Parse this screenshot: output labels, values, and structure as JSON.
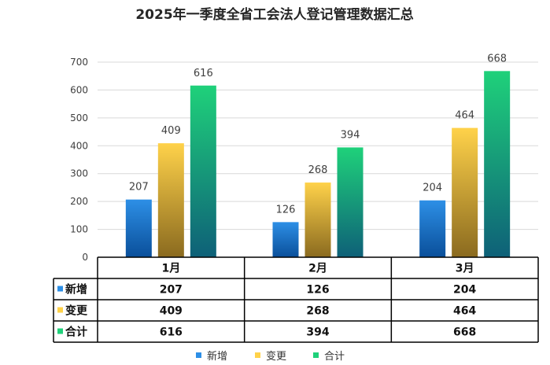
{
  "chart_data": {
    "type": "bar",
    "title": "2025年一季度全省工会法人登记管理数据汇总",
    "categories": [
      "1月",
      "2月",
      "3月"
    ],
    "series": [
      {
        "name": "新增",
        "values": [
          207,
          126,
          204
        ],
        "color_top": "#2d8fe6",
        "color_bottom": "#0a4f9a"
      },
      {
        "name": "变更",
        "values": [
          409,
          268,
          464
        ],
        "color_top": "#ffd24a",
        "color_bottom": "#8a6a1f"
      },
      {
        "name": "合计",
        "values": [
          616,
          394,
          668
        ],
        "color_top": "#1fd17a",
        "color_bottom": "#0e6078"
      }
    ],
    "ylim": [
      0,
      700
    ],
    "yticks": [
      0,
      100,
      200,
      300,
      400,
      500,
      600,
      700
    ],
    "grid": true,
    "legend": "bottom",
    "data_table": true
  }
}
